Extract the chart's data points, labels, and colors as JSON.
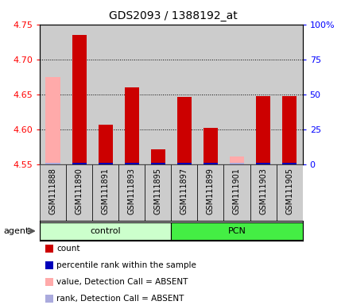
{
  "title": "GDS2093 / 1388192_at",
  "samples": [
    "GSM111888",
    "GSM111890",
    "GSM111891",
    "GSM111893",
    "GSM111895",
    "GSM111897",
    "GSM111899",
    "GSM111901",
    "GSM111903",
    "GSM111905"
  ],
  "count_values": [
    null,
    4.735,
    4.607,
    4.66,
    4.572,
    4.647,
    4.602,
    null,
    4.648,
    4.648
  ],
  "absent_values": [
    4.675,
    null,
    null,
    null,
    null,
    null,
    null,
    4.562,
    null,
    null
  ],
  "rank_pct": [
    null,
    1.5,
    1.5,
    1.5,
    1.5,
    1.5,
    1.5,
    null,
    1.5,
    1.5
  ],
  "absent_rank_pct": [
    1.5,
    null,
    null,
    null,
    null,
    null,
    null,
    1.5,
    null,
    null
  ],
  "ylim": [
    4.55,
    4.75
  ],
  "yticks": [
    4.55,
    4.6,
    4.65,
    4.7,
    4.75
  ],
  "right_yticks_pct": [
    0,
    25,
    50,
    75,
    100
  ],
  "right_ytick_labels": [
    "0",
    "25",
    "50",
    "75",
    "100%"
  ],
  "grid_lines": [
    4.6,
    4.65,
    4.7
  ],
  "count_color": "#cc0000",
  "absent_count_color": "#ffaaaa",
  "rank_color": "#0000bb",
  "absent_rank_color": "#aaaadd",
  "control_color": "#ccffcc",
  "pcn_color": "#44ee44",
  "col_bg_color": "#cccccc",
  "plot_bg_color": "#ffffff",
  "n_control": 5,
  "n_pcn": 5
}
